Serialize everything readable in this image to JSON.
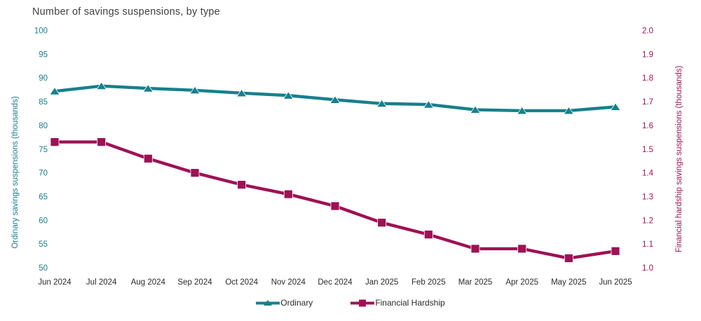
{
  "page": {
    "title": "Number of savings suspensions, by type"
  },
  "colors": {
    "ordinary": "#17808C",
    "financial_hardship": "#9E1155",
    "title_text": "#414042",
    "axis_text": "#2B2A2B",
    "background": "#FFFFFF"
  },
  "chart_data": {
    "type": "line",
    "title": "Number of savings suspensions, by type",
    "grid": false,
    "legend_position": "bottom",
    "categories": [
      "Jun 2024",
      "Jul 2024",
      "Aug 2024",
      "Sep 2024",
      "Oct 2024",
      "Nov 2024",
      "Dec 2024",
      "Jan 2025",
      "Feb 2025",
      "Mar 2025",
      "Apr 2025",
      "May 2025",
      "Jun 2025"
    ],
    "series": [
      {
        "name": "Ordinary",
        "axis": "left",
        "marker": "triangle",
        "color": "#17808C",
        "values": [
          87.2,
          88.3,
          87.8,
          87.4,
          86.8,
          86.3,
          85.4,
          84.6,
          84.4,
          83.3,
          83.1,
          83.1,
          83.9
        ]
      },
      {
        "name": "Financial Hardship",
        "axis": "right",
        "marker": "square",
        "color": "#9E1155",
        "values": [
          1.53,
          1.53,
          1.46,
          1.4,
          1.35,
          1.31,
          1.26,
          1.19,
          1.14,
          1.08,
          1.08,
          1.04,
          1.07
        ]
      }
    ],
    "left_axis": {
      "label": "Ordinary savings suspensions (thousands)",
      "min": 50,
      "max": 100,
      "tick_labels": [
        "100",
        "95",
        "90",
        "85",
        "80",
        "75",
        "70",
        "65",
        "60",
        "55",
        "50"
      ]
    },
    "right_axis": {
      "label": "Financial hardship savings suspensions (thousands)",
      "min": 1.0,
      "max": 2.0,
      "tick_labels": [
        "2.0",
        "1.9",
        "1.8",
        "1.7",
        "1.6",
        "1.5",
        "1.4",
        "1.3",
        "1.2",
        "1.1",
        "1.0"
      ]
    },
    "legend": [
      "Ordinary",
      "Financial Hardship"
    ]
  }
}
